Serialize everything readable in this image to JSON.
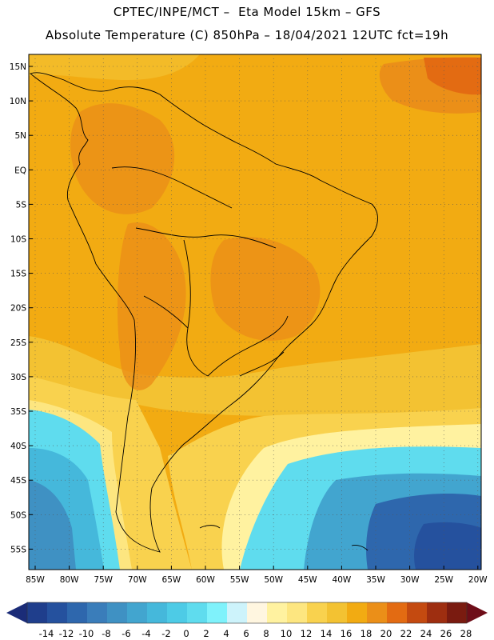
{
  "header": {
    "title_line1": "CPTEC/INPE/MCT –  Eta Model 15km – GFS",
    "title_line2": "Absolute Temperature (C) 850hPa – 18/04/2021 12UTC fct=19h"
  },
  "map": {
    "lat_ticks": [
      "15N",
      "10N",
      "5N",
      "EQ",
      "5S",
      "10S",
      "15S",
      "20S",
      "25S",
      "30S",
      "35S",
      "40S",
      "45S",
      "50S",
      "55S"
    ],
    "lon_ticks": [
      "85W",
      "80W",
      "75W",
      "70W",
      "65W",
      "60W",
      "55W",
      "50W",
      "45W",
      "40W",
      "35W",
      "30W",
      "25W",
      "20W"
    ],
    "grid": true
  },
  "colorbar": {
    "labels": [
      "-14",
      "-12",
      "-10",
      "-8",
      "-6",
      "-4",
      "-2",
      "0",
      "2",
      "4",
      "6",
      "8",
      "10",
      "12",
      "14",
      "16",
      "18",
      "20",
      "22",
      "24",
      "26",
      "28"
    ],
    "colors": [
      "#1f3e8c",
      "#25519e",
      "#2e67ad",
      "#3a7dba",
      "#3f91c3",
      "#42a5cf",
      "#45b8db",
      "#4dcbe6",
      "#5fdcee",
      "#7ff2fb",
      "#cdf3fb",
      "#fff6e0",
      "#fff2a0",
      "#fde680",
      "#f9d24e",
      "#f3c232",
      "#f2ab12",
      "#eb8f18",
      "#e36b12",
      "#c44a10",
      "#9e2e10",
      "#7a1b10"
    ],
    "left_arrow_color": "#1b2c78",
    "right_arrow_color": "#6e0d18"
  }
}
